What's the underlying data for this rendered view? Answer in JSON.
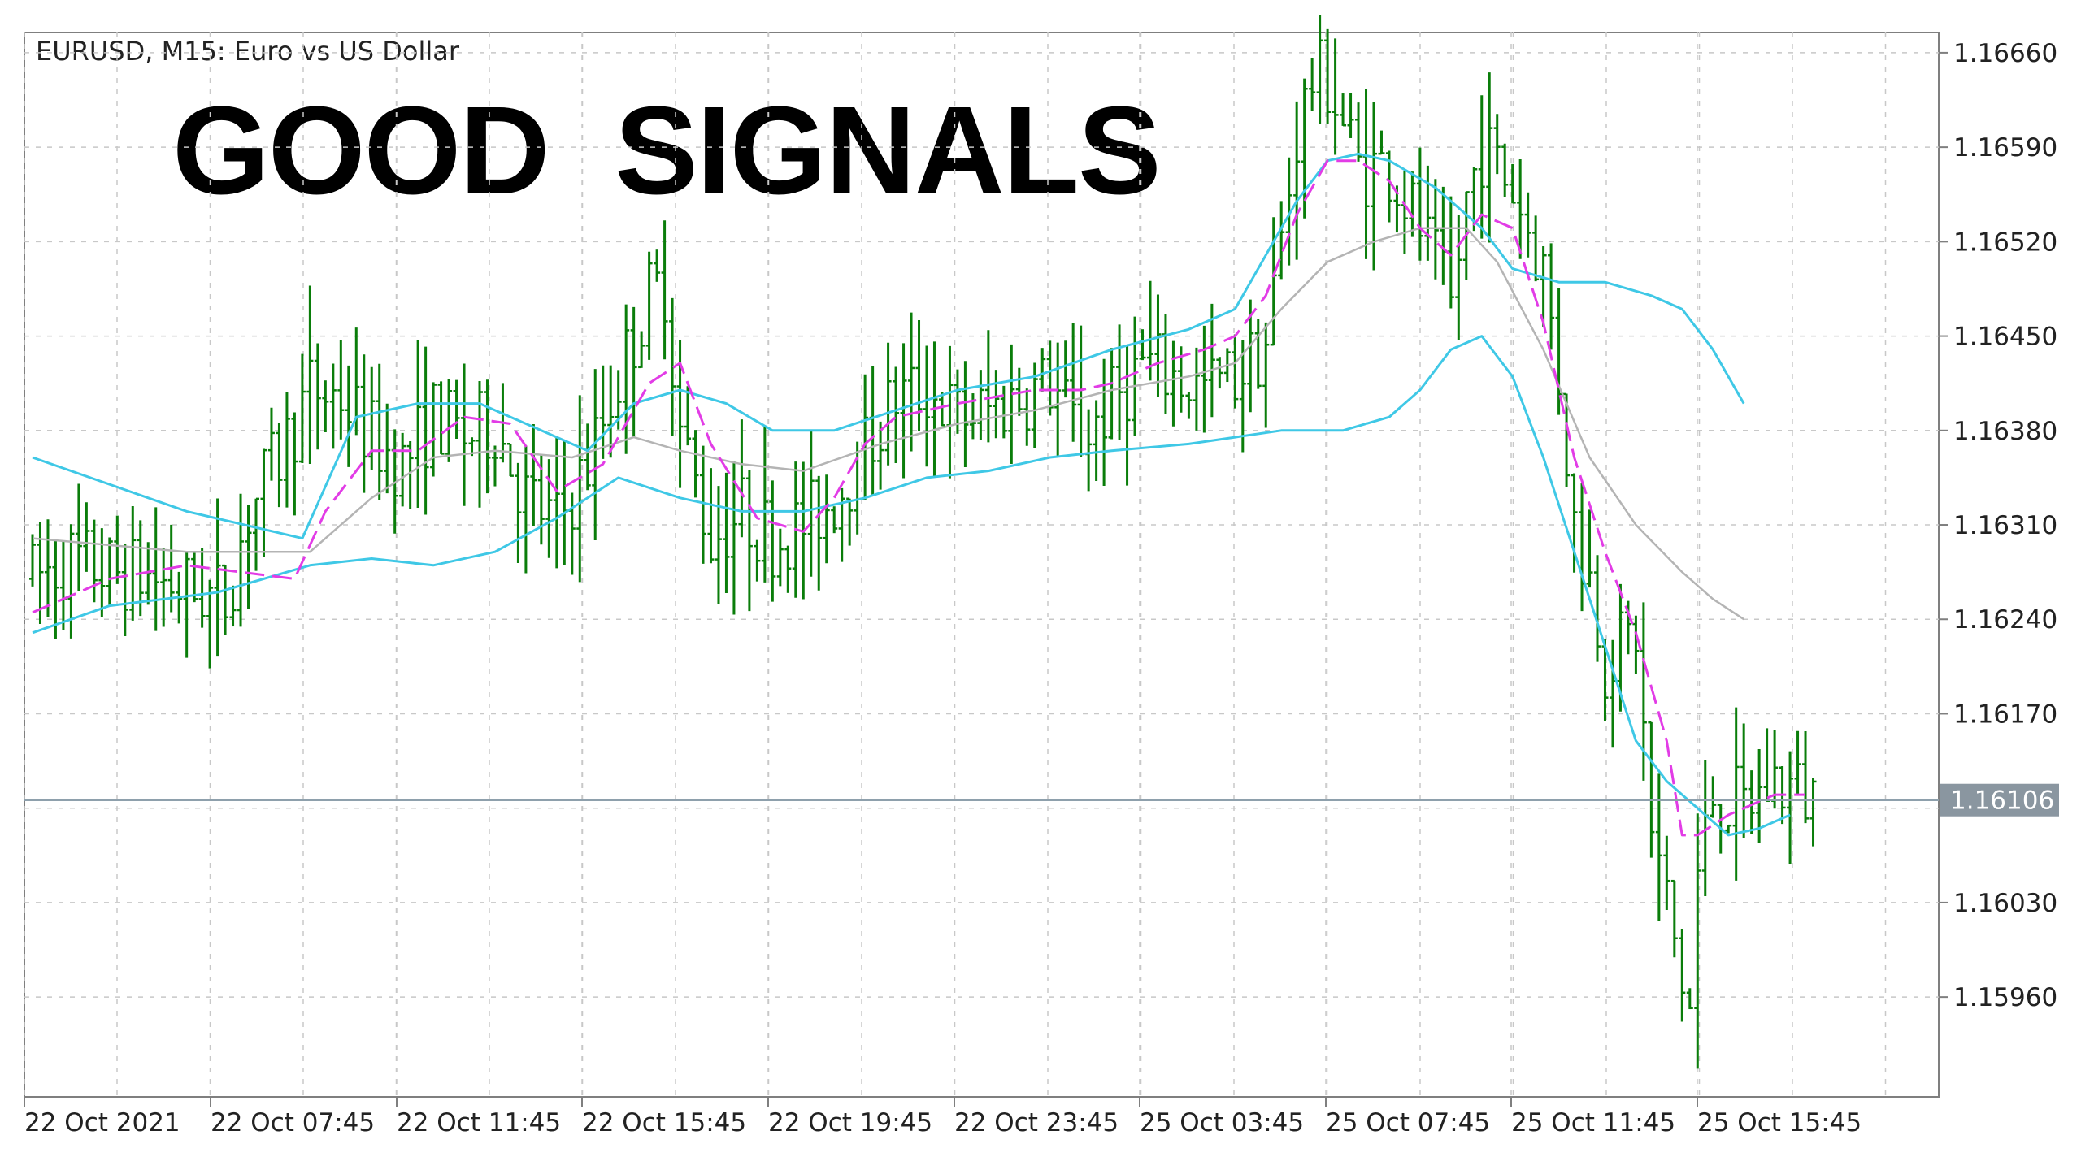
{
  "header": {
    "symbol_info": "EURUSD, M15:  Euro vs US Dollar",
    "overlay_text": "GOOD  SIGNALS"
  },
  "chart_data": {
    "type": "ohlc",
    "symbol": "EURUSD",
    "timeframe": "M15",
    "description": "Euro vs US Dollar",
    "y_ticks": [
      1.1666,
      1.1659,
      1.1652,
      1.1645,
      1.1638,
      1.1631,
      1.1624,
      1.1617,
      1.161,
      1.1603,
      1.1596
    ],
    "y_tick_labels": [
      "1.16660",
      "1.16590",
      "1.16520",
      "1.16450",
      "1.16380",
      "1.16310",
      "1.16240",
      "1.16170",
      "",
      "1.16030",
      "1.15960"
    ],
    "ylim": [
      1.15886,
      1.16675
    ],
    "x_labels": [
      "22 Oct 2021",
      "22 Oct 07:45",
      "22 Oct 11:45",
      "22 Oct 15:45",
      "22 Oct 19:45",
      "22 Oct 23:45",
      "25 Oct 03:45",
      "25 Oct 07:45",
      "25 Oct 11:45",
      "25 Oct 15:45"
    ],
    "current_price": 1.16106,
    "current_price_label": "1.16106",
    "grid": true,
    "colors": {
      "bars": "#0a7d0a",
      "bollinger_bands": "#3fc8e6",
      "bollinger_middle": "#b4b4b4",
      "fast_ma": "#e23ce6",
      "price_line": "#8ea0ac",
      "price_label_bg": "#8a96a0",
      "grid": "#c8c8c8",
      "axis": "#7f7f7f",
      "text": "#222222"
    },
    "price_path": [
      [
        0,
        1.1627
      ],
      [
        5,
        1.16285
      ],
      [
        10,
        1.16275
      ],
      [
        15,
        1.16272
      ],
      [
        20,
        1.16262
      ],
      [
        25,
        1.16255
      ],
      [
        28,
        1.1632
      ],
      [
        32,
        1.1636
      ],
      [
        36,
        1.1641
      ],
      [
        40,
        1.16405
      ],
      [
        44,
        1.16375
      ],
      [
        48,
        1.16355
      ],
      [
        52,
        1.1639
      ],
      [
        56,
        1.16375
      ],
      [
        60,
        1.16385
      ],
      [
        64,
        1.1633
      ],
      [
        68,
        1.1631
      ],
      [
        72,
        1.16355
      ],
      [
        76,
        1.1642
      ],
      [
        80,
        1.1648
      ],
      [
        82,
        1.1649
      ],
      [
        84,
        1.1638
      ],
      [
        88,
        1.163
      ],
      [
        92,
        1.1632
      ],
      [
        96,
        1.163
      ],
      [
        100,
        1.1631
      ],
      [
        104,
        1.1633
      ],
      [
        108,
        1.16365
      ],
      [
        112,
        1.16405
      ],
      [
        116,
        1.1641
      ],
      [
        120,
        1.1639
      ],
      [
        124,
        1.16395
      ],
      [
        128,
        1.16405
      ],
      [
        132,
        1.16415
      ],
      [
        136,
        1.16375
      ],
      [
        140,
        1.164
      ],
      [
        144,
        1.1643
      ],
      [
        148,
        1.1642
      ],
      [
        152,
        1.1641
      ],
      [
        156,
        1.1642
      ],
      [
        160,
        1.16445
      ],
      [
        162,
        1.1652
      ],
      [
        164,
        1.166
      ],
      [
        166,
        1.1664
      ],
      [
        168,
        1.1664
      ],
      [
        172,
        1.16575
      ],
      [
        176,
        1.16575
      ],
      [
        180,
        1.1653
      ],
      [
        184,
        1.1647
      ],
      [
        186,
        1.1655
      ],
      [
        188,
        1.1659
      ],
      [
        192,
        1.1656
      ],
      [
        196,
        1.165
      ],
      [
        198,
        1.1642
      ],
      [
        200,
        1.1631
      ],
      [
        202,
        1.1627
      ],
      [
        204,
        1.1621
      ],
      [
        208,
        1.1623
      ],
      [
        210,
        1.1608
      ],
      [
        212,
        1.1603
      ],
      [
        214,
        1.1597
      ],
      [
        215,
        1.1595
      ],
      [
        216,
        1.1605
      ],
      [
        218,
        1.1611
      ],
      [
        222,
        1.161
      ],
      [
        226,
        1.1612
      ],
      [
        230,
        1.1611
      ]
    ],
    "bollinger_upper": [
      [
        0,
        1.1636
      ],
      [
        20,
        1.1632
      ],
      [
        35,
        1.163
      ],
      [
        42,
        1.1639
      ],
      [
        50,
        1.164
      ],
      [
        58,
        1.164
      ],
      [
        66,
        1.1638
      ],
      [
        72,
        1.16365
      ],
      [
        78,
        1.164
      ],
      [
        84,
        1.1641
      ],
      [
        90,
        1.164
      ],
      [
        96,
        1.1638
      ],
      [
        104,
        1.1638
      ],
      [
        112,
        1.16395
      ],
      [
        120,
        1.1641
      ],
      [
        130,
        1.1642
      ],
      [
        140,
        1.1644
      ],
      [
        150,
        1.16455
      ],
      [
        156,
        1.1647
      ],
      [
        160,
        1.1651
      ],
      [
        164,
        1.1655
      ],
      [
        168,
        1.1658
      ],
      [
        172,
        1.16585
      ],
      [
        176,
        1.1658
      ],
      [
        182,
        1.1656
      ],
      [
        188,
        1.1653
      ],
      [
        192,
        1.165
      ],
      [
        198,
        1.1649
      ],
      [
        204,
        1.1649
      ],
      [
        210,
        1.1648
      ],
      [
        214,
        1.1647
      ],
      [
        218,
        1.1644
      ],
      [
        222,
        1.164
      ]
    ],
    "bollinger_middle": [
      [
        0,
        1.163
      ],
      [
        20,
        1.1629
      ],
      [
        36,
        1.1629
      ],
      [
        44,
        1.1633
      ],
      [
        52,
        1.1636
      ],
      [
        60,
        1.16365
      ],
      [
        70,
        1.1636
      ],
      [
        78,
        1.16375
      ],
      [
        84,
        1.16365
      ],
      [
        92,
        1.16355
      ],
      [
        100,
        1.1635
      ],
      [
        110,
        1.1637
      ],
      [
        120,
        1.16385
      ],
      [
        130,
        1.16395
      ],
      [
        140,
        1.1641
      ],
      [
        150,
        1.1642
      ],
      [
        156,
        1.1643
      ],
      [
        162,
        1.1647
      ],
      [
        168,
        1.16505
      ],
      [
        174,
        1.1652
      ],
      [
        180,
        1.1653
      ],
      [
        186,
        1.1653
      ],
      [
        190,
        1.16505
      ],
      [
        196,
        1.1644
      ],
      [
        202,
        1.1636
      ],
      [
        208,
        1.1631
      ],
      [
        214,
        1.16275
      ],
      [
        218,
        1.16255
      ],
      [
        222,
        1.1624
      ]
    ],
    "bollinger_lower": [
      [
        0,
        1.1623
      ],
      [
        10,
        1.1625
      ],
      [
        24,
        1.1626
      ],
      [
        36,
        1.1628
      ],
      [
        44,
        1.16285
      ],
      [
        52,
        1.1628
      ],
      [
        60,
        1.1629
      ],
      [
        68,
        1.16315
      ],
      [
        76,
        1.16345
      ],
      [
        84,
        1.1633
      ],
      [
        92,
        1.1632
      ],
      [
        100,
        1.1632
      ],
      [
        108,
        1.1633
      ],
      [
        116,
        1.16345
      ],
      [
        124,
        1.1635
      ],
      [
        132,
        1.1636
      ],
      [
        140,
        1.16365
      ],
      [
        150,
        1.1637
      ],
      [
        156,
        1.16375
      ],
      [
        162,
        1.1638
      ],
      [
        170,
        1.1638
      ],
      [
        176,
        1.1639
      ],
      [
        180,
        1.1641
      ],
      [
        184,
        1.1644
      ],
      [
        188,
        1.1645
      ],
      [
        192,
        1.1642
      ],
      [
        196,
        1.1636
      ],
      [
        200,
        1.1629
      ],
      [
        204,
        1.1622
      ],
      [
        208,
        1.1615
      ],
      [
        212,
        1.1612
      ],
      [
        216,
        1.161
      ],
      [
        220,
        1.1608
      ],
      [
        224,
        1.16085
      ],
      [
        228,
        1.16095
      ]
    ],
    "fast_ma": [
      [
        0,
        1.16245
      ],
      [
        10,
        1.1627
      ],
      [
        20,
        1.1628
      ],
      [
        34,
        1.1627
      ],
      [
        38,
        1.1632
      ],
      [
        44,
        1.16365
      ],
      [
        50,
        1.16365
      ],
      [
        56,
        1.1639
      ],
      [
        62,
        1.16385
      ],
      [
        68,
        1.16335
      ],
      [
        74,
        1.16355
      ],
      [
        80,
        1.16415
      ],
      [
        84,
        1.1643
      ],
      [
        88,
        1.1637
      ],
      [
        94,
        1.16315
      ],
      [
        100,
        1.16305
      ],
      [
        104,
        1.1633
      ],
      [
        108,
        1.1637
      ],
      [
        112,
        1.1639
      ],
      [
        120,
        1.164
      ],
      [
        130,
        1.1641
      ],
      [
        136,
        1.1641
      ],
      [
        140,
        1.16415
      ],
      [
        146,
        1.1643
      ],
      [
        152,
        1.1644
      ],
      [
        156,
        1.1645
      ],
      [
        160,
        1.1648
      ],
      [
        164,
        1.1654
      ],
      [
        168,
        1.1658
      ],
      [
        172,
        1.1658
      ],
      [
        176,
        1.16565
      ],
      [
        180,
        1.1653
      ],
      [
        184,
        1.1651
      ],
      [
        188,
        1.1654
      ],
      [
        192,
        1.1653
      ],
      [
        196,
        1.1646
      ],
      [
        200,
        1.1636
      ],
      [
        204,
        1.1629
      ],
      [
        208,
        1.1623
      ],
      [
        212,
        1.1615
      ],
      [
        214,
        1.1608
      ],
      [
        216,
        1.1608
      ],
      [
        220,
        1.16095
      ],
      [
        226,
        1.1611
      ],
      [
        230,
        1.1611
      ]
    ]
  }
}
